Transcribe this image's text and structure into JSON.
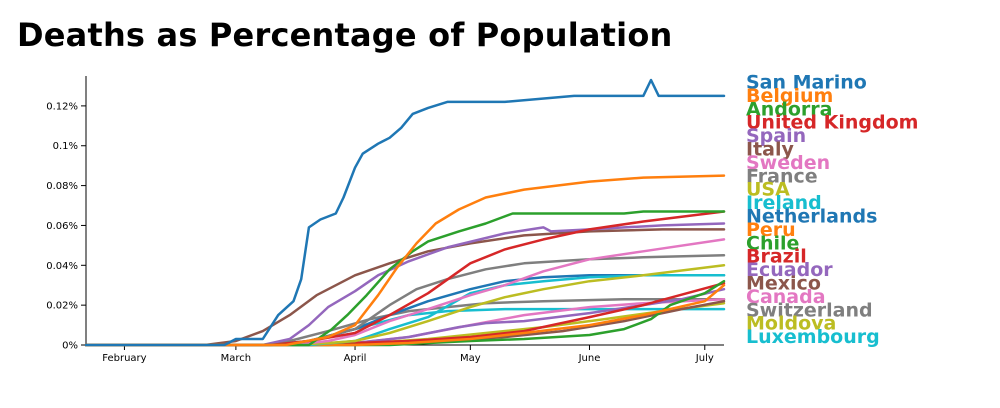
{
  "chart_data": {
    "type": "line",
    "title": "Deaths as Percentage of Population",
    "xlabel": "",
    "ylabel": "",
    "x_domain": [
      "2020-01-22",
      "2020-07-06"
    ],
    "ylim": [
      0,
      0.135
    ],
    "x_ticks": [
      {
        "date": "2020-02-01",
        "label": "February"
      },
      {
        "date": "2020-03-01",
        "label": "March"
      },
      {
        "date": "2020-04-01",
        "label": "April"
      },
      {
        "date": "2020-05-01",
        "label": "May"
      },
      {
        "date": "2020-06-01",
        "label": "June"
      },
      {
        "date": "2020-07-01",
        "label": "July"
      }
    ],
    "y_ticks": [
      {
        "value": 0,
        "label": "0%"
      },
      {
        "value": 0.02,
        "label": "0.02%"
      },
      {
        "value": 0.04,
        "label": "0.04%"
      },
      {
        "value": 0.06,
        "label": "0.06%"
      },
      {
        "value": 0.08,
        "label": "0.08%"
      },
      {
        "value": 0.1,
        "label": "0.1%"
      },
      {
        "value": 0.12,
        "label": "0.12%"
      }
    ],
    "grid": false,
    "legend_position": "right",
    "series": [
      {
        "name": "San Marino",
        "color": "#1f77b4",
        "points": [
          [
            "2020-01-22",
            0
          ],
          [
            "2020-02-27",
            0
          ],
          [
            "2020-03-01",
            0.003
          ],
          [
            "2020-03-08",
            0.003
          ],
          [
            "2020-03-12",
            0.015
          ],
          [
            "2020-03-16",
            0.022
          ],
          [
            "2020-03-18",
            0.033
          ],
          [
            "2020-03-20",
            0.059
          ],
          [
            "2020-03-23",
            0.063
          ],
          [
            "2020-03-27",
            0.066
          ],
          [
            "2020-03-29",
            0.074
          ],
          [
            "2020-04-01",
            0.089
          ],
          [
            "2020-04-03",
            0.096
          ],
          [
            "2020-04-07",
            0.101
          ],
          [
            "2020-04-10",
            0.104
          ],
          [
            "2020-04-13",
            0.109
          ],
          [
            "2020-04-16",
            0.116
          ],
          [
            "2020-04-20",
            0.119
          ],
          [
            "2020-04-25",
            0.122
          ],
          [
            "2020-05-10",
            0.122
          ],
          [
            "2020-05-28",
            0.125
          ],
          [
            "2020-06-15",
            0.125
          ],
          [
            "2020-06-17",
            0.133
          ],
          [
            "2020-06-19",
            0.125
          ],
          [
            "2020-07-06",
            0.125
          ]
        ]
      },
      {
        "name": "Belgium",
        "color": "#ff7f0e",
        "points": [
          [
            "2020-01-22",
            0
          ],
          [
            "2020-03-14",
            0
          ],
          [
            "2020-03-25",
            0.004
          ],
          [
            "2020-04-01",
            0.01
          ],
          [
            "2020-04-07",
            0.025
          ],
          [
            "2020-04-12",
            0.039
          ],
          [
            "2020-04-17",
            0.051
          ],
          [
            "2020-04-22",
            0.061
          ],
          [
            "2020-04-28",
            0.068
          ],
          [
            "2020-05-05",
            0.074
          ],
          [
            "2020-05-15",
            0.078
          ],
          [
            "2020-06-01",
            0.082
          ],
          [
            "2020-06-15",
            0.084
          ],
          [
            "2020-07-06",
            0.085
          ]
        ]
      },
      {
        "name": "Andorra",
        "color": "#2ca02c",
        "points": [
          [
            "2020-01-22",
            0
          ],
          [
            "2020-03-20",
            0
          ],
          [
            "2020-03-26",
            0.008
          ],
          [
            "2020-03-30",
            0.015
          ],
          [
            "2020-04-04",
            0.025
          ],
          [
            "2020-04-10",
            0.038
          ],
          [
            "2020-04-16",
            0.047
          ],
          [
            "2020-04-20",
            0.052
          ],
          [
            "2020-04-28",
            0.057
          ],
          [
            "2020-05-05",
            0.061
          ],
          [
            "2020-05-12",
            0.066
          ],
          [
            "2020-06-10",
            0.066
          ],
          [
            "2020-06-15",
            0.067
          ],
          [
            "2020-07-06",
            0.067
          ]
        ]
      },
      {
        "name": "United Kingdom",
        "color": "#d62728",
        "points": [
          [
            "2020-01-22",
            0
          ],
          [
            "2020-03-10",
            0
          ],
          [
            "2020-03-20",
            0.002
          ],
          [
            "2020-04-01",
            0.006
          ],
          [
            "2020-04-10",
            0.015
          ],
          [
            "2020-04-20",
            0.026
          ],
          [
            "2020-05-01",
            0.041
          ],
          [
            "2020-05-10",
            0.048
          ],
          [
            "2020-05-20",
            0.053
          ],
          [
            "2020-06-01",
            0.058
          ],
          [
            "2020-06-15",
            0.062
          ],
          [
            "2020-07-06",
            0.067
          ]
        ]
      },
      {
        "name": "Spain",
        "color": "#9467bd",
        "points": [
          [
            "2020-01-22",
            0
          ],
          [
            "2020-03-08",
            0
          ],
          [
            "2020-03-15",
            0.003
          ],
          [
            "2020-03-20",
            0.01
          ],
          [
            "2020-03-25",
            0.019
          ],
          [
            "2020-04-01",
            0.027
          ],
          [
            "2020-04-07",
            0.035
          ],
          [
            "2020-04-15",
            0.042
          ],
          [
            "2020-04-25",
            0.049
          ],
          [
            "2020-05-10",
            0.056
          ],
          [
            "2020-05-20",
            0.059
          ],
          [
            "2020-05-22",
            0.057
          ],
          [
            "2020-06-01",
            0.058
          ],
          [
            "2020-06-10",
            0.059
          ],
          [
            "2020-06-20",
            0.06
          ],
          [
            "2020-07-06",
            0.061
          ]
        ]
      },
      {
        "name": "Italy",
        "color": "#8c564b",
        "points": [
          [
            "2020-01-22",
            0
          ],
          [
            "2020-02-22",
            0
          ],
          [
            "2020-03-01",
            0.002
          ],
          [
            "2020-03-08",
            0.007
          ],
          [
            "2020-03-15",
            0.015
          ],
          [
            "2020-03-22",
            0.025
          ],
          [
            "2020-04-01",
            0.035
          ],
          [
            "2020-04-10",
            0.041
          ],
          [
            "2020-04-20",
            0.047
          ],
          [
            "2020-05-01",
            0.051
          ],
          [
            "2020-05-15",
            0.055
          ],
          [
            "2020-06-01",
            0.057
          ],
          [
            "2020-06-20",
            0.058
          ],
          [
            "2020-07-06",
            0.058
          ]
        ]
      },
      {
        "name": "Sweden",
        "color": "#e377c2",
        "points": [
          [
            "2020-01-22",
            0
          ],
          [
            "2020-03-15",
            0
          ],
          [
            "2020-03-25",
            0.002
          ],
          [
            "2020-04-01",
            0.005
          ],
          [
            "2020-04-10",
            0.012
          ],
          [
            "2020-04-20",
            0.018
          ],
          [
            "2020-05-01",
            0.025
          ],
          [
            "2020-05-10",
            0.03
          ],
          [
            "2020-05-20",
            0.037
          ],
          [
            "2020-06-01",
            0.043
          ],
          [
            "2020-06-15",
            0.047
          ],
          [
            "2020-07-06",
            0.053
          ]
        ]
      },
      {
        "name": "France",
        "color": "#7f7f7f",
        "points": [
          [
            "2020-01-22",
            0
          ],
          [
            "2020-03-10",
            0
          ],
          [
            "2020-03-20",
            0.002
          ],
          [
            "2020-04-01",
            0.008
          ],
          [
            "2020-04-10",
            0.02
          ],
          [
            "2020-04-17",
            0.028
          ],
          [
            "2020-04-25",
            0.033
          ],
          [
            "2020-05-05",
            0.038
          ],
          [
            "2020-05-15",
            0.041
          ],
          [
            "2020-06-01",
            0.043
          ],
          [
            "2020-06-15",
            0.044
          ],
          [
            "2020-07-06",
            0.045
          ]
        ]
      },
      {
        "name": "USA",
        "color": "#bcbd22",
        "points": [
          [
            "2020-01-22",
            0
          ],
          [
            "2020-03-15",
            0
          ],
          [
            "2020-03-25",
            0.001
          ],
          [
            "2020-04-01",
            0.002
          ],
          [
            "2020-04-10",
            0.006
          ],
          [
            "2020-04-20",
            0.012
          ],
          [
            "2020-05-01",
            0.019
          ],
          [
            "2020-05-10",
            0.024
          ],
          [
            "2020-05-20",
            0.028
          ],
          [
            "2020-06-01",
            0.032
          ],
          [
            "2020-06-15",
            0.035
          ],
          [
            "2020-07-06",
            0.04
          ]
        ]
      },
      {
        "name": "Ireland",
        "color": "#17becf",
        "points": [
          [
            "2020-01-22",
            0
          ],
          [
            "2020-03-20",
            0
          ],
          [
            "2020-04-01",
            0.002
          ],
          [
            "2020-04-10",
            0.008
          ],
          [
            "2020-04-20",
            0.014
          ],
          [
            "2020-05-01",
            0.026
          ],
          [
            "2020-05-10",
            0.03
          ],
          [
            "2020-05-20",
            0.032
          ],
          [
            "2020-06-01",
            0.034
          ],
          [
            "2020-06-15",
            0.035
          ],
          [
            "2020-07-06",
            0.035
          ]
        ]
      },
      {
        "name": "Netherlands",
        "color": "#1f77b4",
        "points": [
          [
            "2020-01-22",
            0
          ],
          [
            "2020-03-10",
            0
          ],
          [
            "2020-03-20",
            0.002
          ],
          [
            "2020-04-01",
            0.008
          ],
          [
            "2020-04-10",
            0.015
          ],
          [
            "2020-04-20",
            0.022
          ],
          [
            "2020-05-01",
            0.028
          ],
          [
            "2020-05-10",
            0.032
          ],
          [
            "2020-05-20",
            0.034
          ],
          [
            "2020-06-01",
            0.035
          ],
          [
            "2020-07-06",
            0.035
          ]
        ]
      },
      {
        "name": "Peru",
        "color": "#ff7f0e",
        "points": [
          [
            "2020-01-22",
            0
          ],
          [
            "2020-04-01",
            0
          ],
          [
            "2020-04-15",
            0.001
          ],
          [
            "2020-05-01",
            0.003
          ],
          [
            "2020-05-15",
            0.006
          ],
          [
            "2020-06-01",
            0.01
          ],
          [
            "2020-06-15",
            0.015
          ],
          [
            "2020-07-01",
            0.022
          ],
          [
            "2020-07-06",
            0.03
          ]
        ]
      },
      {
        "name": "Chile",
        "color": "#2ca02c",
        "points": [
          [
            "2020-01-22",
            0
          ],
          [
            "2020-04-10",
            0
          ],
          [
            "2020-04-20",
            0.001
          ],
          [
            "2020-05-01",
            0.002
          ],
          [
            "2020-05-15",
            0.003
          ],
          [
            "2020-06-01",
            0.005
          ],
          [
            "2020-06-10",
            0.008
          ],
          [
            "2020-06-17",
            0.013
          ],
          [
            "2020-06-22",
            0.02
          ],
          [
            "2020-07-01",
            0.026
          ],
          [
            "2020-07-06",
            0.032
          ]
        ]
      },
      {
        "name": "Brazil",
        "color": "#d62728",
        "points": [
          [
            "2020-01-22",
            0
          ],
          [
            "2020-03-20",
            0
          ],
          [
            "2020-04-01",
            0.001
          ],
          [
            "2020-04-15",
            0.002
          ],
          [
            "2020-05-01",
            0.004
          ],
          [
            "2020-05-15",
            0.007
          ],
          [
            "2020-06-01",
            0.014
          ],
          [
            "2020-06-15",
            0.02
          ],
          [
            "2020-07-06",
            0.031
          ]
        ]
      },
      {
        "name": "Ecuador",
        "color": "#9467bd",
        "points": [
          [
            "2020-01-22",
            0
          ],
          [
            "2020-03-20",
            0
          ],
          [
            "2020-04-01",
            0.001
          ],
          [
            "2020-04-15",
            0.004
          ],
          [
            "2020-04-28",
            0.009
          ],
          [
            "2020-05-05",
            0.011
          ],
          [
            "2020-05-15",
            0.012
          ],
          [
            "2020-06-01",
            0.016
          ],
          [
            "2020-06-15",
            0.02
          ],
          [
            "2020-06-25",
            0.023
          ],
          [
            "2020-07-06",
            0.028
          ]
        ]
      },
      {
        "name": "Mexico",
        "color": "#8c564b",
        "points": [
          [
            "2020-01-22",
            0
          ],
          [
            "2020-03-25",
            0
          ],
          [
            "2020-04-10",
            0.001
          ],
          [
            "2020-04-25",
            0.002
          ],
          [
            "2020-05-10",
            0.004
          ],
          [
            "2020-05-25",
            0.007
          ],
          [
            "2020-06-10",
            0.012
          ],
          [
            "2020-06-25",
            0.018
          ],
          [
            "2020-07-06",
            0.022
          ]
        ]
      },
      {
        "name": "Canada",
        "color": "#e377c2",
        "points": [
          [
            "2020-01-22",
            0
          ],
          [
            "2020-03-20",
            0
          ],
          [
            "2020-04-01",
            0.001
          ],
          [
            "2020-04-15",
            0.004
          ],
          [
            "2020-05-01",
            0.01
          ],
          [
            "2020-05-15",
            0.015
          ],
          [
            "2020-06-01",
            0.019
          ],
          [
            "2020-06-15",
            0.021
          ],
          [
            "2020-07-06",
            0.023
          ]
        ]
      },
      {
        "name": "Switzerland",
        "color": "#7f7f7f",
        "points": [
          [
            "2020-01-22",
            0
          ],
          [
            "2020-03-08",
            0
          ],
          [
            "2020-03-15",
            0.002
          ],
          [
            "2020-03-25",
            0.007
          ],
          [
            "2020-04-05",
            0.013
          ],
          [
            "2020-04-15",
            0.017
          ],
          [
            "2020-04-25",
            0.019
          ],
          [
            "2020-05-05",
            0.021
          ],
          [
            "2020-05-20",
            0.022
          ],
          [
            "2020-06-10",
            0.023
          ],
          [
            "2020-07-06",
            0.023
          ]
        ]
      },
      {
        "name": "Moldova",
        "color": "#bcbd22",
        "points": [
          [
            "2020-01-22",
            0
          ],
          [
            "2020-03-20",
            0
          ],
          [
            "2020-04-05",
            0.001
          ],
          [
            "2020-04-20",
            0.003
          ],
          [
            "2020-05-05",
            0.006
          ],
          [
            "2020-05-20",
            0.009
          ],
          [
            "2020-06-05",
            0.013
          ],
          [
            "2020-06-20",
            0.017
          ],
          [
            "2020-07-06",
            0.021
          ]
        ]
      },
      {
        "name": "Luxembourg",
        "color": "#17becf",
        "points": [
          [
            "2020-01-22",
            0
          ],
          [
            "2020-03-12",
            0
          ],
          [
            "2020-03-20",
            0.002
          ],
          [
            "2020-03-28",
            0.006
          ],
          [
            "2020-04-05",
            0.01
          ],
          [
            "2020-04-15",
            0.015
          ],
          [
            "2020-04-25",
            0.017
          ],
          [
            "2020-05-10",
            0.018
          ],
          [
            "2020-06-01",
            0.018
          ],
          [
            "2020-07-06",
            0.018
          ]
        ]
      }
    ]
  }
}
